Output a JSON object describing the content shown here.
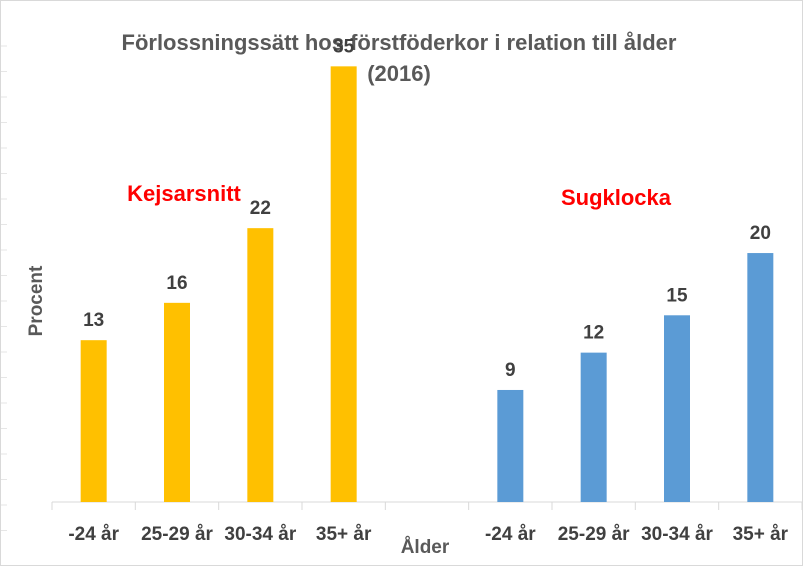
{
  "chart_data": {
    "type": "bar",
    "title": "Förlossningssätt hos förstföderkor i relation till ålder",
    "subtitle": "(2016)",
    "xlabel": "Ålder",
    "ylabel": "Procent",
    "ylim": [
      0,
      38
    ],
    "grid": false,
    "legend": "none",
    "categories": [
      "-24 år",
      "25-29 år",
      "30-34 år",
      "35+ år",
      "",
      "-24 år",
      "25-29 år",
      "30-34 år",
      "35+ år"
    ],
    "series": [
      {
        "name": "Kejsarsnitt",
        "color": "#FFC000",
        "values": [
          13,
          16,
          22,
          35,
          null,
          null,
          null,
          null,
          null
        ]
      },
      {
        "name": "Sugklocka",
        "color": "#5B9BD5",
        "values": [
          null,
          null,
          null,
          null,
          null,
          9,
          12,
          15,
          20
        ]
      }
    ],
    "group_label_color": "#FF0000"
  }
}
